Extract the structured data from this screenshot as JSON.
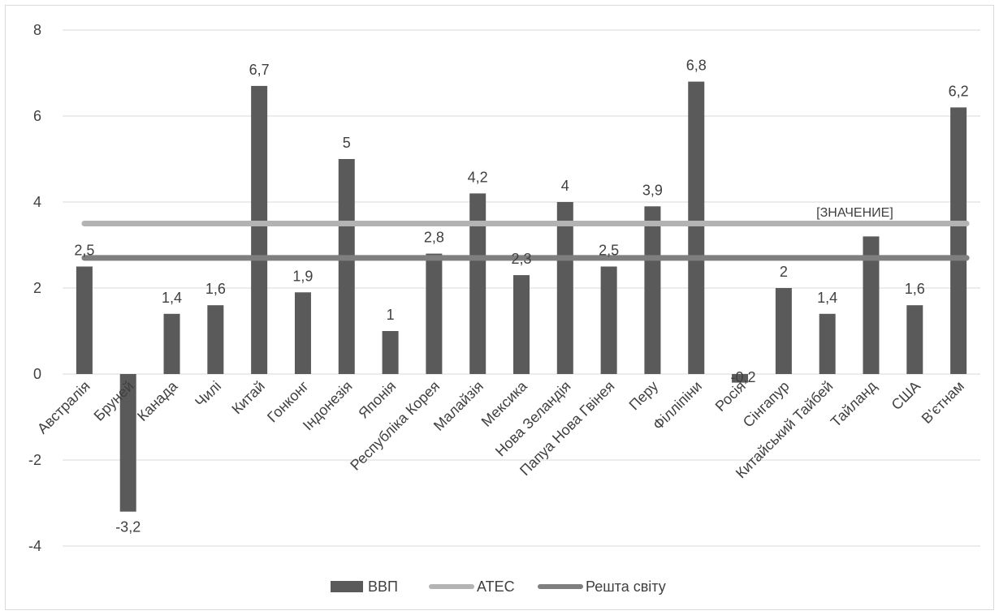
{
  "chart_data": {
    "type": "bar",
    "categories": [
      "Австралія",
      "Бруней",
      "Канада",
      "Чилі",
      "Китай",
      "Гонконг",
      "Індонезія",
      "Японія",
      "Республіка Корея",
      "Малайзія",
      "Мексика",
      "Нова Зеландія",
      "Папуа Нова Гвінея",
      "Перу",
      "Філліпіни",
      "Росія",
      "Сінгапур",
      "Китайський Тайбей",
      "Тайланд",
      "США",
      "В'єтнам"
    ],
    "series": [
      {
        "name": "ВВП",
        "type": "bar",
        "color": "#5a5a5a",
        "values": [
          2.5,
          -3.2,
          1.4,
          1.6,
          6.7,
          1.9,
          5,
          1,
          2.8,
          4.2,
          2.3,
          4,
          2.5,
          3.9,
          6.8,
          -0.2,
          2,
          1.4,
          3.2,
          1.6,
          6.2
        ],
        "data_labels": [
          "2,5",
          "-3,2",
          "1,4",
          "1,6",
          "6,7",
          "1,9",
          "5",
          "1",
          "2,8",
          "4,2",
          "2,3",
          "4",
          "2,5",
          "3,9",
          "6,8",
          "-0,2",
          "2",
          "1,4",
          "[ЗНАЧЕНИЕ]",
          "1,6",
          "6,2"
        ]
      },
      {
        "name": "АТЕС",
        "type": "line",
        "color": "#b3b3b3",
        "value": 3.5
      },
      {
        "name": "Решта світу",
        "type": "line",
        "color": "#7f7f7f",
        "value": 2.7
      }
    ],
    "yticks": [
      "8",
      "6",
      "4",
      "2",
      "0",
      "-2",
      "-4"
    ],
    "ylim": [
      -4,
      8
    ],
    "grid": true,
    "legend": "bottom"
  }
}
